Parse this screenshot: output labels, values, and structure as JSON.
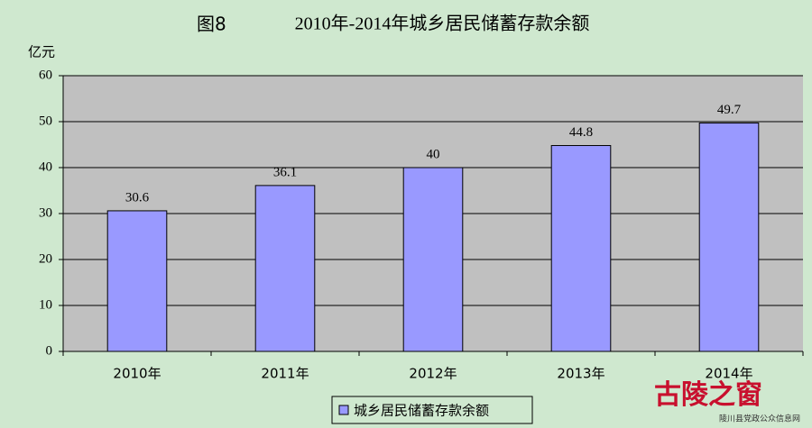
{
  "chart_data": {
    "type": "bar",
    "figure_label": "图8",
    "title": "2010年-2014年城乡居民储蓄存款余额",
    "y_unit": "亿元",
    "categories": [
      "2010年",
      "2011年",
      "2012年",
      "2013年",
      "2014年"
    ],
    "series": [
      {
        "name": "城乡居民储蓄存款余额",
        "color": "#9999ff",
        "values": [
          30.6,
          36.1,
          40,
          44.8,
          49.7
        ]
      }
    ],
    "ylim": [
      0,
      60
    ],
    "yticks": [
      0,
      10,
      20,
      30,
      40,
      50,
      60
    ],
    "grid": true,
    "legend": "bottom"
  },
  "watermark": {
    "logo": "古陵之窗",
    "site": "陵川县党政公众信息网"
  }
}
